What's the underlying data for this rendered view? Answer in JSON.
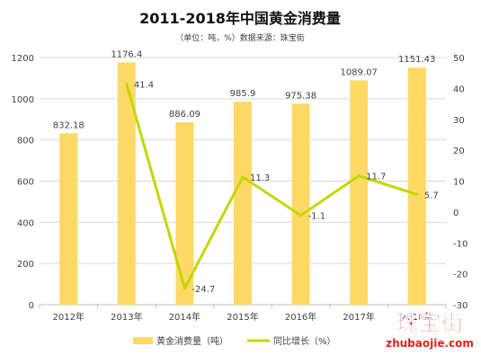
{
  "chart_data": {
    "type": "bar",
    "title": "2011-2018年中国黄金消费量",
    "subtitle": "（单位：吨，%）数据来源：珠宝街",
    "categories": [
      "2012年",
      "2013年",
      "2014年",
      "2015年",
      "2016年",
      "2017年",
      "2018年"
    ],
    "series": [
      {
        "name": "黄金消费量（吨）",
        "type": "bar",
        "axis": "left",
        "values": [
          832.18,
          1176.4,
          886.09,
          985.9,
          975.38,
          1089.07,
          1151.43
        ],
        "labels": [
          "832.18",
          "1176.4",
          "886.09",
          "985.9",
          "975.38",
          "1089.07",
          "1151.43"
        ]
      },
      {
        "name": "同比增长（%）",
        "type": "line",
        "axis": "right",
        "values": [
          null,
          41.4,
          -24.7,
          11.3,
          -1.1,
          11.7,
          5.7
        ],
        "labels": [
          "",
          "41.4",
          "-24.7",
          "11.3",
          "-1.1",
          "11.7",
          "5.7"
        ]
      }
    ],
    "y_left": {
      "min": 0,
      "max": 1200,
      "ticks": [
        "0",
        "200",
        "400",
        "600",
        "800",
        "1000",
        "1200"
      ]
    },
    "y_right": {
      "min": -30,
      "max": 50,
      "ticks": [
        "-30",
        "-20",
        "-10",
        "0",
        "10",
        "20",
        "30",
        "40",
        "50"
      ]
    },
    "grid": true,
    "legend": "bottom",
    "colors": {
      "bar": "#FFD966",
      "line": "#C4D600",
      "grid": "#D9D9D9",
      "text": "#404040",
      "watermark": "#E0231B"
    }
  },
  "watermark": {
    "brand": "珠宝街",
    "url": "zhubaojie.com"
  }
}
